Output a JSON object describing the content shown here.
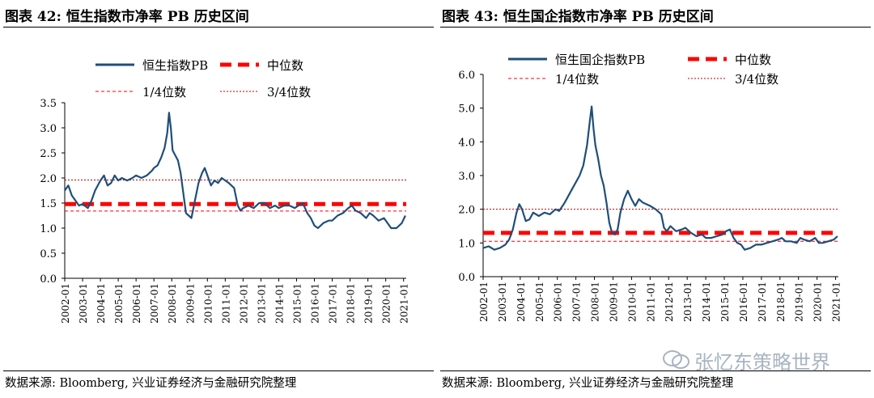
{
  "charts": [
    {
      "fig_title": "图表 42:  恒生指数市净率 PB 历史区间",
      "source": "数据来源:  Bloomberg,  兴业证券经济与金融研究院整理",
      "chart_data": {
        "type": "line",
        "title": "",
        "xlabel": "",
        "ylabel": "",
        "ylim": [
          0,
          3.5
        ],
        "yticks": [
          "0.0",
          "0.5",
          "1.0",
          "1.5",
          "2.0",
          "2.5",
          "3.0",
          "3.5"
        ],
        "xlim": [
          2002.0,
          2021.15
        ],
        "xticks": [
          "2002-01",
          "2003-01",
          "2004-01",
          "2005-01",
          "2006-01",
          "2007-01",
          "2008-01",
          "2009-01",
          "2010-01",
          "2011-01",
          "2012-01",
          "2013-01",
          "2014-01",
          "2015-01",
          "2016-01",
          "2017-01",
          "2018-01",
          "2019-01",
          "2020-01",
          "2021-01"
        ],
        "legend": [
          "恒生指数PB",
          "中位数",
          "1/4位数",
          "3/4位数"
        ],
        "series": [
          {
            "name": "恒生指数PB",
            "color": "#1f4e79",
            "style": "solid",
            "points": [
              [
                2002.0,
                1.75
              ],
              [
                2002.2,
                1.85
              ],
              [
                2002.4,
                1.65
              ],
              [
                2002.6,
                1.55
              ],
              [
                2002.8,
                1.45
              ],
              [
                2003.0,
                1.48
              ],
              [
                2003.3,
                1.4
              ],
              [
                2003.5,
                1.55
              ],
              [
                2003.7,
                1.75
              ],
              [
                2004.0,
                1.95
              ],
              [
                2004.2,
                2.05
              ],
              [
                2004.4,
                1.85
              ],
              [
                2004.6,
                1.9
              ],
              [
                2004.8,
                2.05
              ],
              [
                2005.0,
                1.95
              ],
              [
                2005.2,
                2.0
              ],
              [
                2005.5,
                1.95
              ],
              [
                2005.8,
                2.0
              ],
              [
                2006.0,
                2.05
              ],
              [
                2006.3,
                2.0
              ],
              [
                2006.6,
                2.05
              ],
              [
                2006.9,
                2.15
              ],
              [
                2007.0,
                2.2
              ],
              [
                2007.2,
                2.25
              ],
              [
                2007.4,
                2.4
              ],
              [
                2007.6,
                2.6
              ],
              [
                2007.75,
                2.9
              ],
              [
                2007.85,
                3.3
              ],
              [
                2007.95,
                3.0
              ],
              [
                2008.05,
                2.55
              ],
              [
                2008.2,
                2.45
              ],
              [
                2008.35,
                2.35
              ],
              [
                2008.5,
                2.1
              ],
              [
                2008.65,
                1.7
              ],
              [
                2008.8,
                1.3
              ],
              [
                2008.95,
                1.25
              ],
              [
                2009.1,
                1.2
              ],
              [
                2009.3,
                1.55
              ],
              [
                2009.5,
                1.9
              ],
              [
                2009.7,
                2.1
              ],
              [
                2009.85,
                2.2
              ],
              [
                2010.0,
                2.05
              ],
              [
                2010.2,
                1.85
              ],
              [
                2010.4,
                1.95
              ],
              [
                2010.6,
                1.9
              ],
              [
                2010.8,
                2.0
              ],
              [
                2011.0,
                1.95
              ],
              [
                2011.2,
                1.9
              ],
              [
                2011.5,
                1.8
              ],
              [
                2011.7,
                1.45
              ],
              [
                2011.85,
                1.35
              ],
              [
                2012.0,
                1.4
              ],
              [
                2012.3,
                1.45
              ],
              [
                2012.6,
                1.4
              ],
              [
                2012.9,
                1.5
              ],
              [
                2013.2,
                1.5
              ],
              [
                2013.5,
                1.4
              ],
              [
                2013.8,
                1.45
              ],
              [
                2014.0,
                1.4
              ],
              [
                2014.3,
                1.45
              ],
              [
                2014.6,
                1.45
              ],
              [
                2014.9,
                1.4
              ],
              [
                2015.1,
                1.45
              ],
              [
                2015.35,
                1.5
              ],
              [
                2015.6,
                1.3
              ],
              [
                2015.8,
                1.2
              ],
              [
                2016.0,
                1.05
              ],
              [
                2016.2,
                1.0
              ],
              [
                2016.5,
                1.1
              ],
              [
                2016.8,
                1.15
              ],
              [
                2017.0,
                1.15
              ],
              [
                2017.3,
                1.25
              ],
              [
                2017.6,
                1.3
              ],
              [
                2017.9,
                1.4
              ],
              [
                2018.1,
                1.45
              ],
              [
                2018.3,
                1.35
              ],
              [
                2018.6,
                1.3
              ],
              [
                2018.9,
                1.2
              ],
              [
                2019.1,
                1.3
              ],
              [
                2019.3,
                1.25
              ],
              [
                2019.6,
                1.15
              ],
              [
                2019.9,
                1.2
              ],
              [
                2020.1,
                1.1
              ],
              [
                2020.3,
                1.0
              ],
              [
                2020.6,
                1.0
              ],
              [
                2020.9,
                1.1
              ],
              [
                2021.1,
                1.25
              ]
            ]
          },
          {
            "name": "中位数",
            "color": "#ff0000",
            "style": "dashed-thick",
            "value": 1.48
          },
          {
            "name": "1/4位数",
            "color": "#ff0000",
            "style": "dashed-thin",
            "value": 1.34
          },
          {
            "name": "3/4位数",
            "color": "#c00000",
            "style": "dotted-thin",
            "value": 1.96
          }
        ]
      }
    },
    {
      "fig_title": "图表 43:  恒生国企指数市净率 PB 历史区间",
      "source": "数据来源:  Bloomberg,  兴业证券经济与金融研究院整理",
      "chart_data": {
        "type": "line",
        "title": "",
        "xlabel": "",
        "ylabel": "",
        "ylim": [
          0,
          6.0
        ],
        "yticks": [
          "0.0",
          "1.0",
          "2.0",
          "3.0",
          "4.0",
          "5.0",
          "6.0"
        ],
        "xlim": [
          2002.0,
          2021.15
        ],
        "xticks": [
          "2002-01",
          "2003-01",
          "2004-01",
          "2005-01",
          "2006-01",
          "2007-01",
          "2008-01",
          "2009-01",
          "2010-01",
          "2011-01",
          "2012-01",
          "2013-01",
          "2014-01",
          "2015-01",
          "2016-01",
          "2017-01",
          "2018-01",
          "2019-01",
          "2020-01",
          "2021-01"
        ],
        "legend": [
          "恒生国企指数PB",
          "中位数",
          "1/4位数",
          "3/4位数"
        ],
        "series": [
          {
            "name": "恒生国企指数PB",
            "color": "#1f4e79",
            "style": "solid",
            "points": [
              [
                2002.0,
                0.85
              ],
              [
                2002.3,
                0.9
              ],
              [
                2002.6,
                0.8
              ],
              [
                2002.9,
                0.85
              ],
              [
                2003.2,
                0.95
              ],
              [
                2003.4,
                1.1
              ],
              [
                2003.6,
                1.4
              ],
              [
                2003.8,
                1.9
              ],
              [
                2003.95,
                2.15
              ],
              [
                2004.1,
                2.0
              ],
              [
                2004.3,
                1.65
              ],
              [
                2004.5,
                1.7
              ],
              [
                2004.7,
                1.9
              ],
              [
                2005.0,
                1.8
              ],
              [
                2005.3,
                1.9
              ],
              [
                2005.6,
                1.85
              ],
              [
                2005.9,
                2.0
              ],
              [
                2006.1,
                1.95
              ],
              [
                2006.4,
                2.2
              ],
              [
                2006.7,
                2.5
              ],
              [
                2007.0,
                2.8
              ],
              [
                2007.2,
                3.0
              ],
              [
                2007.4,
                3.3
              ],
              [
                2007.6,
                3.9
              ],
              [
                2007.75,
                4.6
              ],
              [
                2007.85,
                5.05
              ],
              [
                2007.95,
                4.4
              ],
              [
                2008.05,
                3.9
              ],
              [
                2008.2,
                3.5
              ],
              [
                2008.35,
                3.0
              ],
              [
                2008.5,
                2.7
              ],
              [
                2008.65,
                2.2
              ],
              [
                2008.8,
                1.6
              ],
              [
                2008.95,
                1.3
              ],
              [
                2009.1,
                1.25
              ],
              [
                2009.25,
                1.4
              ],
              [
                2009.4,
                1.9
              ],
              [
                2009.6,
                2.3
              ],
              [
                2009.8,
                2.55
              ],
              [
                2010.0,
                2.3
              ],
              [
                2010.2,
                2.1
              ],
              [
                2010.4,
                2.3
              ],
              [
                2010.6,
                2.2
              ],
              [
                2010.8,
                2.15
              ],
              [
                2011.0,
                2.1
              ],
              [
                2011.3,
                2.0
              ],
              [
                2011.6,
                1.85
              ],
              [
                2011.75,
                1.45
              ],
              [
                2011.9,
                1.35
              ],
              [
                2012.1,
                1.5
              ],
              [
                2012.4,
                1.35
              ],
              [
                2012.7,
                1.4
              ],
              [
                2012.9,
                1.45
              ],
              [
                2013.2,
                1.3
              ],
              [
                2013.5,
                1.2
              ],
              [
                2013.8,
                1.25
              ],
              [
                2014.0,
                1.15
              ],
              [
                2014.3,
                1.15
              ],
              [
                2014.6,
                1.2
              ],
              [
                2014.9,
                1.25
              ],
              [
                2015.1,
                1.35
              ],
              [
                2015.3,
                1.4
              ],
              [
                2015.5,
                1.15
              ],
              [
                2015.7,
                1.0
              ],
              [
                2015.9,
                0.95
              ],
              [
                2016.1,
                0.8
              ],
              [
                2016.4,
                0.85
              ],
              [
                2016.7,
                0.95
              ],
              [
                2017.0,
                0.95
              ],
              [
                2017.3,
                1.0
              ],
              [
                2017.6,
                1.05
              ],
              [
                2017.9,
                1.1
              ],
              [
                2018.1,
                1.15
              ],
              [
                2018.3,
                1.05
              ],
              [
                2018.6,
                1.05
              ],
              [
                2018.9,
                1.0
              ],
              [
                2019.1,
                1.15
              ],
              [
                2019.3,
                1.1
              ],
              [
                2019.6,
                1.05
              ],
              [
                2019.9,
                1.15
              ],
              [
                2020.1,
                1.0
              ],
              [
                2020.3,
                1.0
              ],
              [
                2020.6,
                1.05
              ],
              [
                2020.9,
                1.1
              ],
              [
                2021.1,
                1.2
              ]
            ]
          },
          {
            "name": "中位数",
            "color": "#ff0000",
            "style": "dashed-thick",
            "value": 1.3
          },
          {
            "name": "1/4位数",
            "color": "#ff0000",
            "style": "dashed-thin",
            "value": 1.05
          },
          {
            "name": "3/4位数",
            "color": "#c00000",
            "style": "dotted-thin",
            "value": 2.0
          }
        ]
      }
    }
  ],
  "watermark": {
    "text": "张忆东策略世界",
    "icon": "wechat-icon"
  }
}
